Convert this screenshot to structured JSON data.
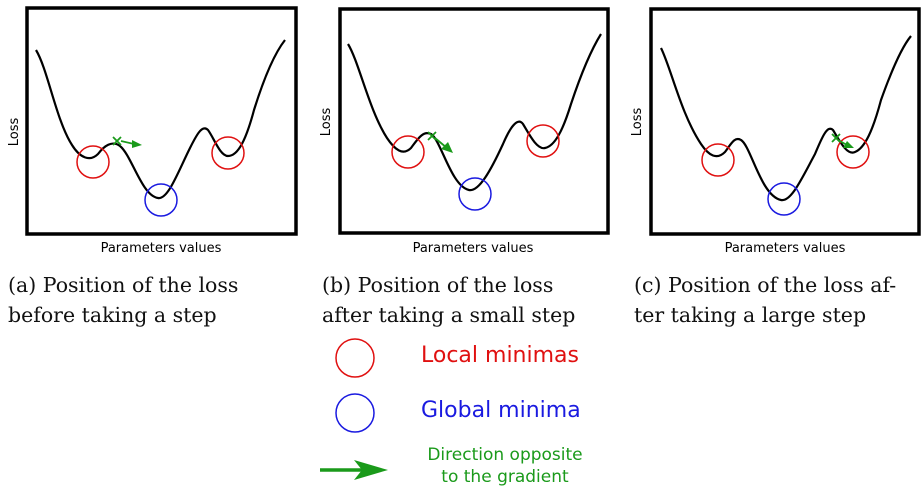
{
  "panels": [
    {
      "id": "a",
      "ylabel": "Loss",
      "xlabel": "Parameters values",
      "caption": "(a) Position of the loss before taking a step",
      "caption_lines": [
        "(a) Position of the loss",
        "before taking a step"
      ]
    },
    {
      "id": "b",
      "ylabel": "Loss",
      "xlabel": "Parameters values",
      "caption": "(b) Position of the loss after taking a small step",
      "caption_lines": [
        "(b) Position of the loss",
        "after taking a small step"
      ]
    },
    {
      "id": "c",
      "ylabel": "Loss",
      "xlabel": "Parameters values",
      "caption": "(c) Position of the loss after taking a large step",
      "caption_lines": [
        "(c) Position of the loss af-",
        "ter taking a large step"
      ]
    }
  ],
  "legend": {
    "local": {
      "label": "Local minimas",
      "color": "#e01010"
    },
    "global": {
      "label": "Global minima",
      "color": "#1a1ae0"
    },
    "direction": {
      "label_line1": "Direction opposite",
      "label_line2": "to the gradient",
      "color": "#1a9a1a"
    }
  },
  "colors": {
    "curve": "#000000",
    "frame": "#000000"
  }
}
